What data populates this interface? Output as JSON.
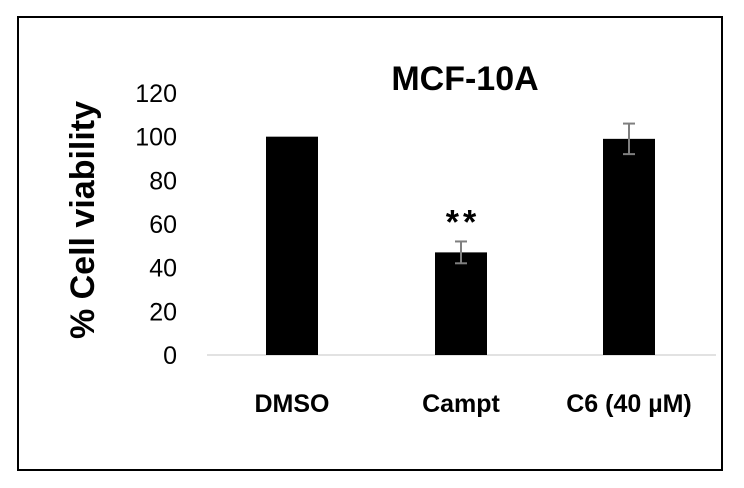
{
  "chart_data": {
    "type": "bar",
    "title": "MCF-10A",
    "ylabel": "% Cell viability",
    "xlabel": "",
    "categories": [
      "DMSO",
      "Campt",
      "C6 (40 µM)"
    ],
    "values": [
      100,
      47,
      99
    ],
    "errors": [
      0,
      5,
      7
    ],
    "annotations": [
      "",
      "**",
      ""
    ],
    "ylim": [
      0,
      120
    ],
    "yticks": [
      "0",
      "20",
      "40",
      "60",
      "80",
      "100",
      "120"
    ],
    "grid": false,
    "legend": "none",
    "bar_color": "#000000",
    "error_color": "#7f7f7f"
  }
}
